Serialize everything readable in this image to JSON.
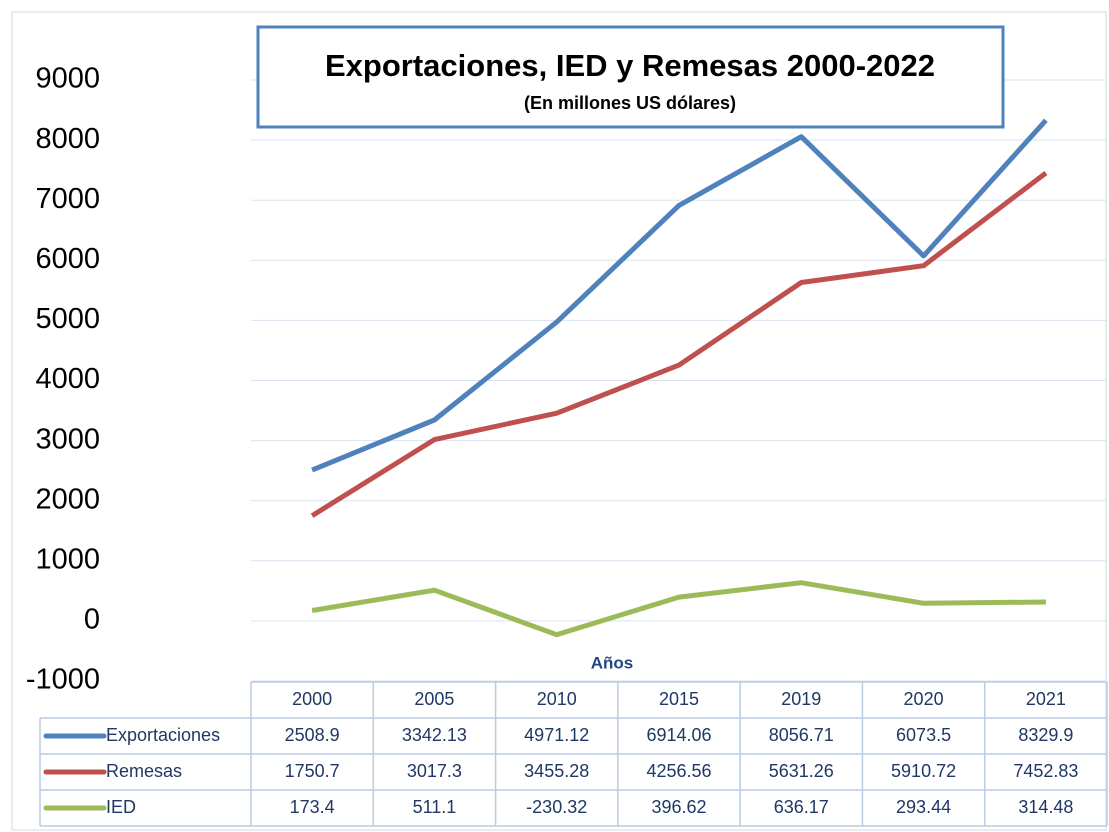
{
  "chart_data": {
    "type": "line",
    "title": "Exportaciones, IED y Remesas 2000-2022",
    "subtitle": "(En millones US dólares)",
    "x_label": "Años",
    "categories": [
      "2000",
      "2005",
      "2010",
      "2015",
      "2019",
      "2020",
      "2021"
    ],
    "series": [
      {
        "name": "Exportaciones",
        "color": "#4f81bd",
        "values": [
          2508.9,
          3342.13,
          4971.12,
          6914.06,
          8056.71,
          6073.5,
          8329.9
        ]
      },
      {
        "name": "Remesas",
        "color": "#c0504d",
        "values": [
          1750.7,
          3017.3,
          3455.28,
          4256.56,
          5631.26,
          5910.72,
          7452.83
        ]
      },
      {
        "name": "IED",
        "color": "#9bbb59",
        "values": [
          173.4,
          511.1,
          -230.32,
          396.62,
          636.17,
          293.44,
          314.48
        ]
      }
    ],
    "ylim": [
      -1000,
      9000
    ],
    "yticks": [
      -1000,
      0,
      1000,
      2000,
      3000,
      4000,
      5000,
      6000,
      7000,
      8000,
      9000
    ],
    "grid": true
  }
}
